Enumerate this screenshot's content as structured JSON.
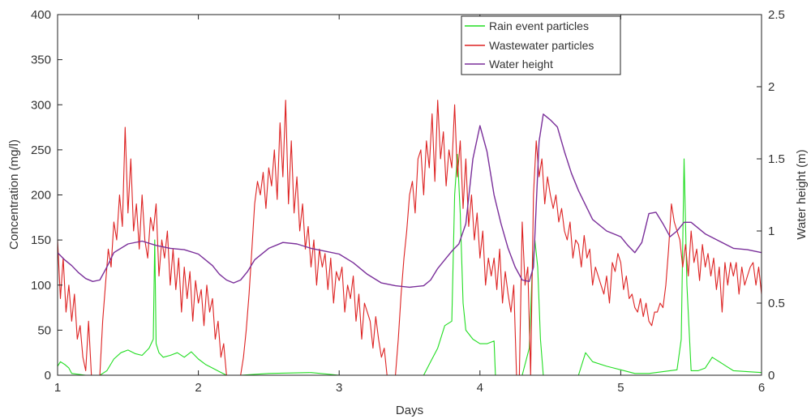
{
  "chart_data": {
    "type": "line",
    "title": "",
    "xlabel": "Days",
    "ylabel_left": "Concentration (mg/l)",
    "ylabel_right": "Water height (m)",
    "xlim": [
      1,
      6
    ],
    "ylim_left": [
      0,
      400
    ],
    "ylim_right": [
      0,
      2.5
    ],
    "x_ticks": [
      "1",
      "2",
      "3",
      "4",
      "5",
      "6"
    ],
    "y_ticks_left": [
      "0",
      "50",
      "100",
      "150",
      "200",
      "250",
      "300",
      "350",
      "400"
    ],
    "y_ticks_right": [
      "0",
      "0.5",
      "1",
      "1.5",
      "2",
      "2.5"
    ],
    "grid": false,
    "legend_position": "top-center",
    "series": [
      {
        "name": "Rain event particles",
        "color": "#22dd22",
        "axis": "left",
        "x": [
          1.0,
          1.02,
          1.05,
          1.08,
          1.1,
          1.2,
          1.3,
          1.35,
          1.4,
          1.45,
          1.5,
          1.55,
          1.6,
          1.65,
          1.68,
          1.69,
          1.7,
          1.72,
          1.75,
          1.8,
          1.85,
          1.9,
          1.95,
          2.0,
          2.05,
          2.1,
          2.15,
          2.2,
          2.3,
          2.5,
          2.8,
          3.0,
          3.3,
          3.6,
          3.65,
          3.7,
          3.75,
          3.8,
          3.82,
          3.84,
          3.86,
          3.88,
          3.9,
          3.95,
          4.0,
          4.05,
          4.1,
          4.11,
          4.2,
          4.3,
          4.35,
          4.37,
          4.39,
          4.41,
          4.43,
          4.45,
          4.5,
          4.7,
          4.75,
          4.8,
          4.9,
          5.0,
          5.1,
          5.2,
          5.3,
          5.4,
          5.43,
          5.45,
          5.47,
          5.5,
          5.55,
          5.6,
          5.65,
          5.7,
          5.75,
          5.8,
          5.9,
          6.0
        ],
        "values": [
          10,
          15,
          12,
          8,
          2,
          0,
          0,
          5,
          18,
          25,
          28,
          24,
          22,
          30,
          40,
          150,
          35,
          25,
          20,
          22,
          25,
          20,
          26,
          18,
          12,
          8,
          4,
          0,
          0,
          2,
          3,
          0,
          0,
          0,
          15,
          30,
          55,
          60,
          200,
          245,
          180,
          80,
          50,
          40,
          35,
          35,
          38,
          0,
          0,
          0,
          30,
          110,
          150,
          120,
          40,
          0,
          0,
          0,
          25,
          15,
          10,
          6,
          2,
          2,
          4,
          6,
          40,
          240,
          100,
          5,
          5,
          8,
          20,
          15,
          10,
          5,
          4,
          3
        ]
      },
      {
        "name": "Wastewater particles",
        "color": "#dd2222",
        "axis": "left",
        "x": [
          1.0,
          1.02,
          1.04,
          1.06,
          1.08,
          1.1,
          1.12,
          1.14,
          1.16,
          1.18,
          1.2,
          1.22,
          1.24,
          1.26,
          1.28,
          1.3,
          1.32,
          1.34,
          1.36,
          1.38,
          1.4,
          1.42,
          1.44,
          1.46,
          1.48,
          1.5,
          1.52,
          1.54,
          1.56,
          1.58,
          1.6,
          1.62,
          1.64,
          1.66,
          1.68,
          1.7,
          1.72,
          1.74,
          1.76,
          1.78,
          1.8,
          1.82,
          1.84,
          1.86,
          1.88,
          1.9,
          1.92,
          1.94,
          1.96,
          1.98,
          2.0,
          2.02,
          2.04,
          2.06,
          2.08,
          2.1,
          2.12,
          2.14,
          2.16,
          2.18,
          2.2,
          2.22,
          2.24,
          2.26,
          2.28,
          2.3,
          2.32,
          2.34,
          2.36,
          2.38,
          2.4,
          2.42,
          2.44,
          2.46,
          2.48,
          2.5,
          2.52,
          2.54,
          2.56,
          2.58,
          2.6,
          2.62,
          2.64,
          2.66,
          2.68,
          2.7,
          2.72,
          2.74,
          2.76,
          2.78,
          2.8,
          2.82,
          2.84,
          2.86,
          2.88,
          2.9,
          2.92,
          2.94,
          2.96,
          2.98,
          3.0,
          3.02,
          3.04,
          3.06,
          3.08,
          3.1,
          3.12,
          3.14,
          3.16,
          3.18,
          3.2,
          3.22,
          3.24,
          3.26,
          3.28,
          3.3,
          3.32,
          3.34,
          3.36,
          3.38,
          3.4,
          3.42,
          3.44,
          3.46,
          3.48,
          3.5,
          3.52,
          3.54,
          3.56,
          3.58,
          3.6,
          3.62,
          3.64,
          3.66,
          3.68,
          3.7,
          3.72,
          3.74,
          3.76,
          3.78,
          3.8,
          3.82,
          3.84,
          3.86,
          3.88,
          3.9,
          3.92,
          3.94,
          3.96,
          3.98,
          4.0,
          4.02,
          4.04,
          4.06,
          4.08,
          4.1,
          4.12,
          4.14,
          4.16,
          4.18,
          4.2,
          4.22,
          4.24,
          4.26,
          4.28,
          4.3,
          4.32,
          4.34,
          4.36,
          4.38,
          4.4,
          4.42,
          4.44,
          4.46,
          4.48,
          4.5,
          4.52,
          4.54,
          4.56,
          4.58,
          4.6,
          4.62,
          4.64,
          4.66,
          4.68,
          4.7,
          4.72,
          4.74,
          4.76,
          4.78,
          4.8,
          4.82,
          4.84,
          4.86,
          4.88,
          4.9,
          4.92,
          4.94,
          4.96,
          4.98,
          5.0,
          5.02,
          5.04,
          5.06,
          5.08,
          5.1,
          5.12,
          5.14,
          5.16,
          5.18,
          5.2,
          5.22,
          5.24,
          5.26,
          5.28,
          5.3,
          5.32,
          5.34,
          5.36,
          5.38,
          5.4,
          5.42,
          5.44,
          5.46,
          5.48,
          5.5,
          5.52,
          5.54,
          5.56,
          5.58,
          5.6,
          5.62,
          5.64,
          5.66,
          5.68,
          5.7,
          5.72,
          5.74,
          5.76,
          5.78,
          5.8,
          5.82,
          5.84,
          5.86,
          5.88,
          5.9,
          5.92,
          5.94,
          5.96,
          5.98,
          6.0
        ],
        "values": [
          150,
          85,
          130,
          70,
          100,
          60,
          90,
          40,
          55,
          20,
          5,
          60,
          0,
          0,
          0,
          0,
          60,
          100,
          140,
          120,
          170,
          150,
          200,
          165,
          275,
          180,
          240,
          160,
          190,
          140,
          200,
          150,
          130,
          175,
          160,
          190,
          110,
          150,
          130,
          160,
          100,
          140,
          95,
          130,
          70,
          120,
          85,
          115,
          60,
          105,
          80,
          95,
          55,
          100,
          70,
          85,
          40,
          60,
          20,
          35,
          0,
          0,
          0,
          0,
          0,
          0,
          20,
          50,
          90,
          140,
          190,
          215,
          200,
          225,
          185,
          230,
          210,
          250,
          195,
          280,
          220,
          305,
          190,
          260,
          180,
          220,
          160,
          190,
          140,
          165,
          120,
          150,
          100,
          140,
          120,
          135,
          95,
          130,
          80,
          115,
          105,
          120,
          70,
          100,
          85,
          110,
          60,
          90,
          40,
          80,
          70,
          60,
          30,
          65,
          40,
          20,
          30,
          0,
          0,
          0,
          0,
          40,
          90,
          130,
          160,
          200,
          215,
          180,
          240,
          250,
          200,
          260,
          230,
          290,
          215,
          305,
          240,
          270,
          210,
          250,
          230,
          300,
          220,
          260,
          185,
          240,
          165,
          200,
          150,
          180,
          130,
          160,
          100,
          130,
          110,
          130,
          95,
          140,
          80,
          115,
          90,
          70,
          100,
          0,
          0,
          170,
          100,
          120,
          0,
          200,
          260,
          220,
          240,
          190,
          220,
          200,
          185,
          200,
          170,
          185,
          160,
          150,
          170,
          130,
          150,
          145,
          120,
          155,
          130,
          140,
          100,
          120,
          110,
          100,
          90,
          110,
          80,
          125,
          115,
          135,
          125,
          95,
          110,
          85,
          90,
          75,
          70,
          85,
          65,
          80,
          60,
          55,
          70,
          70,
          80,
          75,
          100,
          140,
          190,
          170,
          160,
          150,
          120,
          145,
          110,
          160,
          125,
          140,
          105,
          145,
          120,
          135,
          110,
          130,
          95,
          120,
          70,
          125,
          100,
          125,
          110,
          125,
          90,
          120,
          100,
          110,
          120,
          125,
          100,
          120,
          90
        ],
        "peak_max": 305,
        "peak_x": 2.6
      },
      {
        "name": "Water height",
        "color": "#7a2f9a",
        "axis": "right",
        "x": [
          1.0,
          1.05,
          1.1,
          1.15,
          1.2,
          1.25,
          1.3,
          1.35,
          1.4,
          1.5,
          1.6,
          1.7,
          1.8,
          1.9,
          2.0,
          2.05,
          2.1,
          2.15,
          2.2,
          2.25,
          2.3,
          2.35,
          2.4,
          2.5,
          2.6,
          2.7,
          2.8,
          2.9,
          3.0,
          3.1,
          3.2,
          3.3,
          3.4,
          3.5,
          3.6,
          3.65,
          3.7,
          3.75,
          3.8,
          3.85,
          3.9,
          3.95,
          4.0,
          4.05,
          4.1,
          4.15,
          4.2,
          4.25,
          4.3,
          4.35,
          4.38,
          4.42,
          4.45,
          4.5,
          4.55,
          4.6,
          4.65,
          4.7,
          4.8,
          4.9,
          5.0,
          5.05,
          5.1,
          5.15,
          5.2,
          5.25,
          5.3,
          5.35,
          5.4,
          5.45,
          5.5,
          5.6,
          5.7,
          5.8,
          5.9,
          6.0
        ],
        "values": [
          0.85,
          0.8,
          0.76,
          0.71,
          0.67,
          0.65,
          0.66,
          0.75,
          0.85,
          0.91,
          0.93,
          0.9,
          0.88,
          0.87,
          0.84,
          0.8,
          0.76,
          0.7,
          0.66,
          0.64,
          0.66,
          0.72,
          0.8,
          0.88,
          0.92,
          0.91,
          0.88,
          0.86,
          0.84,
          0.78,
          0.7,
          0.64,
          0.62,
          0.61,
          0.62,
          0.66,
          0.74,
          0.8,
          0.86,
          0.91,
          1.05,
          1.5,
          1.73,
          1.55,
          1.25,
          1.05,
          0.88,
          0.75,
          0.66,
          0.65,
          0.75,
          1.62,
          1.81,
          1.77,
          1.72,
          1.55,
          1.4,
          1.28,
          1.08,
          1.0,
          0.96,
          0.9,
          0.85,
          0.92,
          1.12,
          1.13,
          1.05,
          0.96,
          1.0,
          1.06,
          1.06,
          0.98,
          0.93,
          0.88,
          0.87,
          0.85
        ]
      }
    ]
  }
}
